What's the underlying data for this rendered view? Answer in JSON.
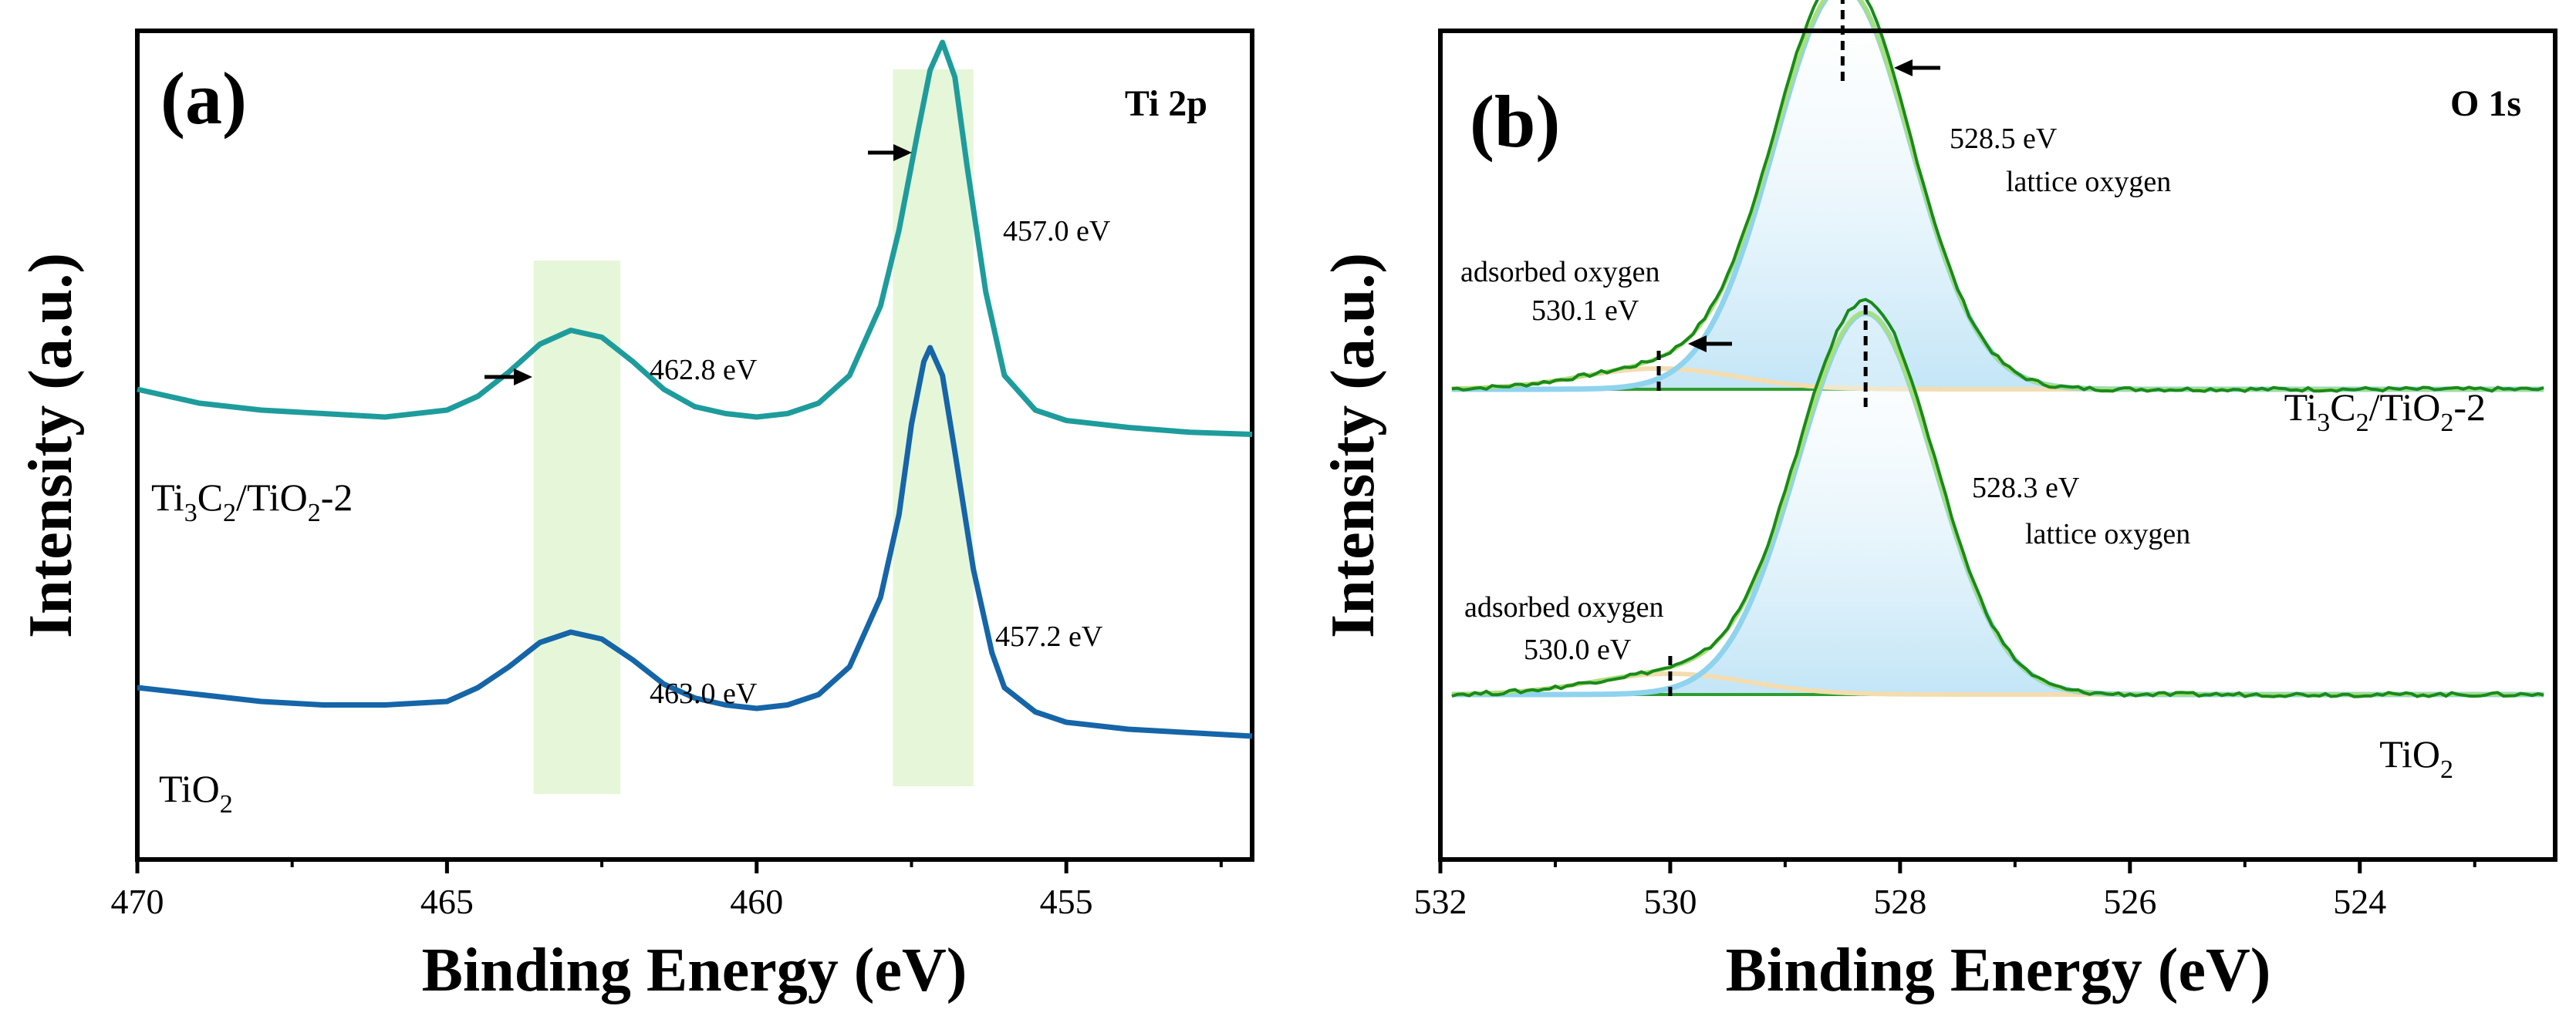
{
  "chart_data": [
    {
      "type": "line",
      "panel": "(a)",
      "title": "Ti 2p",
      "xlabel": "Binding Energy (eV)",
      "ylabel": "Intensity (a.u.)",
      "xlim": [
        470,
        452
      ],
      "x_reversed": true,
      "xticks": [
        470,
        465,
        460,
        455
      ],
      "grid": false,
      "series": [
        {
          "name": "Ti3C2/TiO2-2",
          "color": "#1e9c9c",
          "x": [
            470,
            469,
            468,
            467,
            466,
            465,
            464.5,
            464,
            463.5,
            463,
            462.5,
            462,
            461.5,
            461,
            460.5,
            460,
            459.5,
            459,
            458.5,
            458,
            457.7,
            457.4,
            457.2,
            457.0,
            456.8,
            456.6,
            456.3,
            456,
            455.5,
            455,
            454,
            453,
            452
          ],
          "y": [
            0.6,
            0.58,
            0.57,
            0.565,
            0.56,
            0.57,
            0.59,
            0.625,
            0.665,
            0.685,
            0.675,
            0.64,
            0.6,
            0.575,
            0.565,
            0.56,
            0.565,
            0.58,
            0.62,
            0.72,
            0.83,
            0.97,
            1.06,
            1.1,
            1.05,
            0.92,
            0.74,
            0.62,
            0.57,
            0.555,
            0.545,
            0.538,
            0.535
          ]
        },
        {
          "name": "TiO2",
          "color": "#1565a8",
          "x": [
            470,
            469,
            468,
            467,
            466,
            465,
            464.5,
            464,
            463.5,
            463,
            462.5,
            462,
            461.5,
            461,
            460.5,
            460,
            459.5,
            459,
            458.5,
            458,
            457.7,
            457.5,
            457.3,
            457.2,
            457.0,
            456.8,
            456.5,
            456.2,
            456,
            455.5,
            455,
            454,
            453,
            452
          ],
          "y": [
            0.17,
            0.16,
            0.15,
            0.145,
            0.145,
            0.15,
            0.17,
            0.2,
            0.235,
            0.25,
            0.24,
            0.21,
            0.175,
            0.155,
            0.145,
            0.14,
            0.145,
            0.16,
            0.2,
            0.3,
            0.42,
            0.55,
            0.64,
            0.66,
            0.62,
            0.51,
            0.34,
            0.22,
            0.17,
            0.135,
            0.12,
            0.11,
            0.105,
            0.1
          ]
        }
      ],
      "highlight_bands": [
        [
          463.6,
          462.2
        ],
        [
          457.8,
          456.5
        ]
      ],
      "peak_labels": [
        "462.8 eV",
        "457.0 eV",
        "463.0 eV",
        "457.2 eV"
      ],
      "sample_labels": [
        {
          "parts": [
            "Ti",
            "3",
            "C",
            "2",
            "/TiO",
            "2",
            "-2"
          ]
        },
        {
          "parts": [
            "TiO",
            "2"
          ]
        }
      ]
    },
    {
      "type": "area",
      "panel": "(b)",
      "title": "O 1s",
      "xlabel": "Binding Energy (eV)",
      "ylabel": "Intensity (a.u.)",
      "xlim": [
        532,
        522.3
      ],
      "x_reversed": true,
      "xticks": [
        532,
        530,
        528,
        526,
        524
      ],
      "grid": false,
      "spectra": [
        {
          "sample": "Ti3C2/TiO2-2",
          "baseline": 0.6,
          "lattice_peak": {
            "label": "lattice oxygen",
            "position_eV": 528.5,
            "position_label": "528.5 eV",
            "height": 0.58,
            "fwhm": 1.4
          },
          "adsorbed_peak": {
            "label": "adsorbed oxygen",
            "position_eV": 530.1,
            "position_label": "530.1 eV",
            "height": 0.03,
            "fwhm": 1.6
          }
        },
        {
          "sample": "TiO2",
          "baseline": 0.16,
          "lattice_peak": {
            "label": "lattice oxygen",
            "position_eV": 528.3,
            "position_label": "528.3 eV",
            "height": 0.55,
            "fwhm": 1.4
          },
          "adsorbed_peak": {
            "label": "adsorbed oxygen",
            "position_eV": 530.0,
            "position_label": "530.0 eV",
            "height": 0.03,
            "fwhm": 1.6
          }
        }
      ],
      "colors": {
        "raw": "#1a8a1a",
        "envelope": "#a8e07a",
        "lattice": "#8fd3ee",
        "lattice_fill": "#cfeaf8",
        "adsorbed": "#f3ddb0",
        "baseline": "#2e9e2e"
      },
      "sample_labels": [
        {
          "parts": [
            "Ti",
            "3",
            "C",
            "2",
            "/TiO",
            "2",
            "-2"
          ]
        },
        {
          "parts": [
            "TiO",
            "2"
          ]
        }
      ]
    }
  ]
}
